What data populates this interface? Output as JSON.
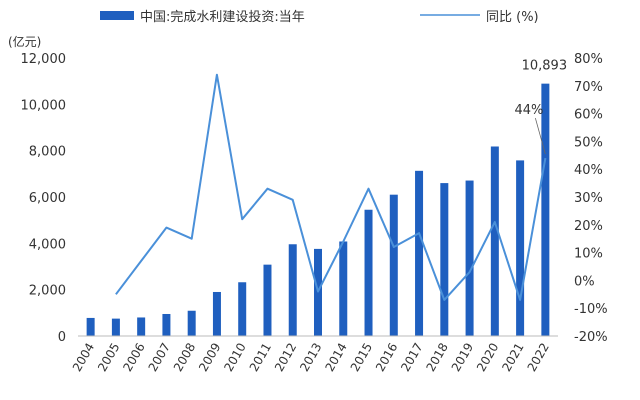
{
  "chart_data": {
    "type": "bar+line",
    "unit_label": "(亿元)",
    "categories": [
      "2004",
      "2005",
      "2006",
      "2007",
      "2008",
      "2009",
      "2010",
      "2011",
      "2012",
      "2013",
      "2014",
      "2015",
      "2016",
      "2017",
      "2018",
      "2019",
      "2020",
      "2021",
      "2022"
    ],
    "series": [
      {
        "name": "中国:完成水利建设投资:当年",
        "type": "bar",
        "axis": "left",
        "color": "#1f5fbf",
        "values": [
          780,
          750,
          800,
          950,
          1090,
          1900,
          2320,
          3080,
          3960,
          3760,
          4080,
          5450,
          6100,
          7130,
          6600,
          6710,
          8180,
          7580,
          10893
        ]
      },
      {
        "name": "同比 (%)",
        "type": "line",
        "axis": "right",
        "color": "#4a90d9",
        "values": [
          null,
          -5,
          7,
          19,
          15,
          74,
          22,
          33,
          29,
          -4,
          14,
          33,
          12,
          17,
          -7,
          3,
          21,
          -7,
          44
        ]
      }
    ],
    "left_axis": {
      "min": 0,
      "max": 12000,
      "ticks": [
        0,
        2000,
        4000,
        6000,
        8000,
        10000,
        12000
      ],
      "tick_labels": [
        "0",
        "2,000",
        "4,000",
        "6,000",
        "8,000",
        "10,000",
        "12,000"
      ]
    },
    "right_axis": {
      "min": -20,
      "max": 80,
      "ticks": [
        -20,
        -10,
        0,
        10,
        20,
        30,
        40,
        50,
        60,
        70,
        80
      ],
      "tick_labels": [
        "-20%",
        "-10%",
        "0%",
        "10%",
        "20%",
        "30%",
        "40%",
        "50%",
        "60%",
        "70%",
        "80%"
      ]
    },
    "annotations": [
      {
        "text": "10,893",
        "series": 0,
        "index": 18
      },
      {
        "text": "44%",
        "series": 1,
        "index": 18
      }
    ],
    "legend": {
      "placement": "top"
    },
    "grid": false
  }
}
